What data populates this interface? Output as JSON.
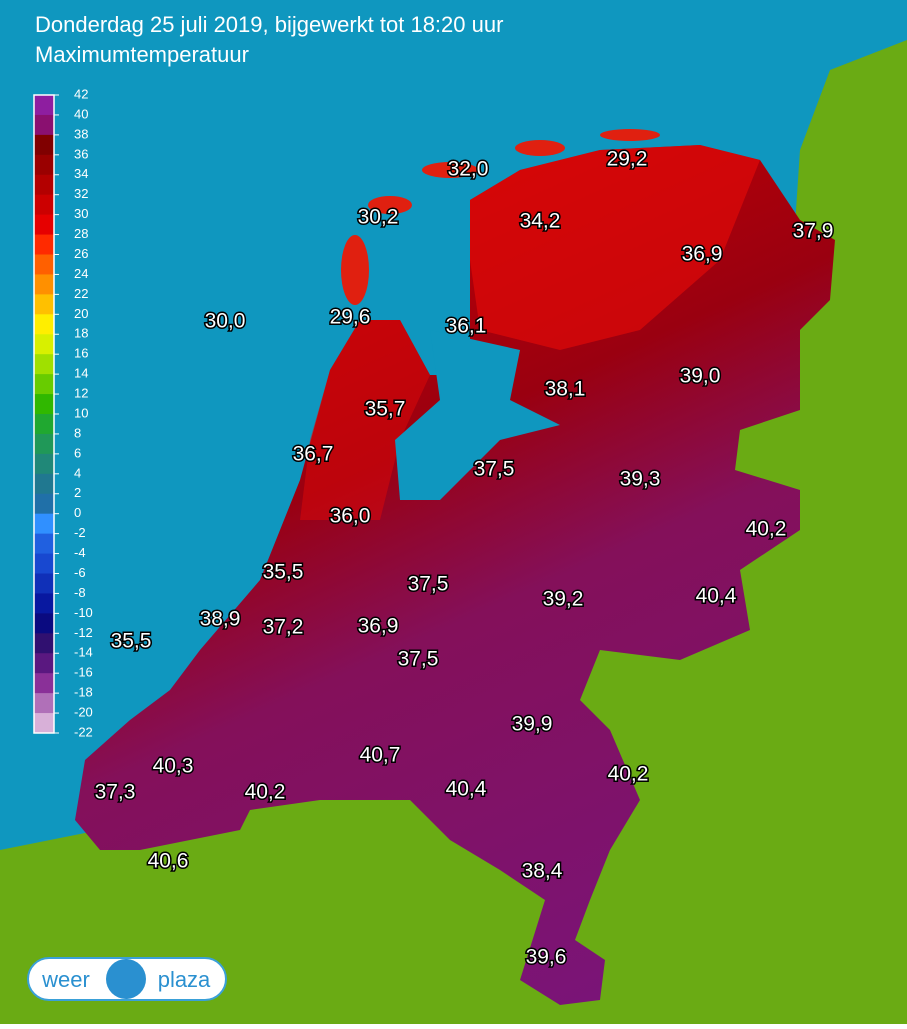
{
  "header": {
    "title": "Donderdag 25 juli 2019, bijgewerkt tot 18:20 uur",
    "subtitle": "Maximumtemperatuur"
  },
  "legend": {
    "ticks": [
      42,
      40,
      38,
      36,
      34,
      32,
      30,
      28,
      26,
      24,
      22,
      20,
      18,
      16,
      14,
      12,
      10,
      8,
      6,
      4,
      2,
      0,
      -2,
      -4,
      -6,
      -8,
      -10,
      -12,
      -14,
      -16,
      -18,
      -20,
      -22
    ],
    "colors": [
      "#8e1ea0",
      "#8a1070",
      "#800000",
      "#9a0000",
      "#b30000",
      "#cc0000",
      "#e60000",
      "#ff2a00",
      "#ff6000",
      "#ff9000",
      "#ffc000",
      "#ffee00",
      "#d8f000",
      "#a0e000",
      "#68cc00",
      "#30b800",
      "#20a830",
      "#209858",
      "#208878",
      "#207890",
      "#2070a8",
      "#3090ff",
      "#2060e0",
      "#1848d0",
      "#1030b8",
      "#0818a0",
      "#0a0a80",
      "#301070",
      "#5a1880",
      "#8a3098",
      "#b070b8",
      "#d8b0d8"
    ]
  },
  "stations": [
    "32,0",
    "29,2",
    "30,2",
    "34,2",
    "37,9",
    "36,9",
    "30,0",
    "29,6",
    "36,1",
    "39,0",
    "38,1",
    "35,7",
    "36,7",
    "37,5",
    "39,3",
    "40,2",
    "36,0",
    "35,5",
    "37,5",
    "39,2",
    "40,4",
    "38,9",
    "37,2",
    "36,9",
    "35,5",
    "37,5",
    "39,9",
    "40,7",
    "40,3",
    "37,3",
    "40,2",
    "40,4",
    "40,2",
    "40,6",
    "38,4",
    "39,6"
  ],
  "logo": {
    "left": "weer",
    "right": "plaza"
  }
}
